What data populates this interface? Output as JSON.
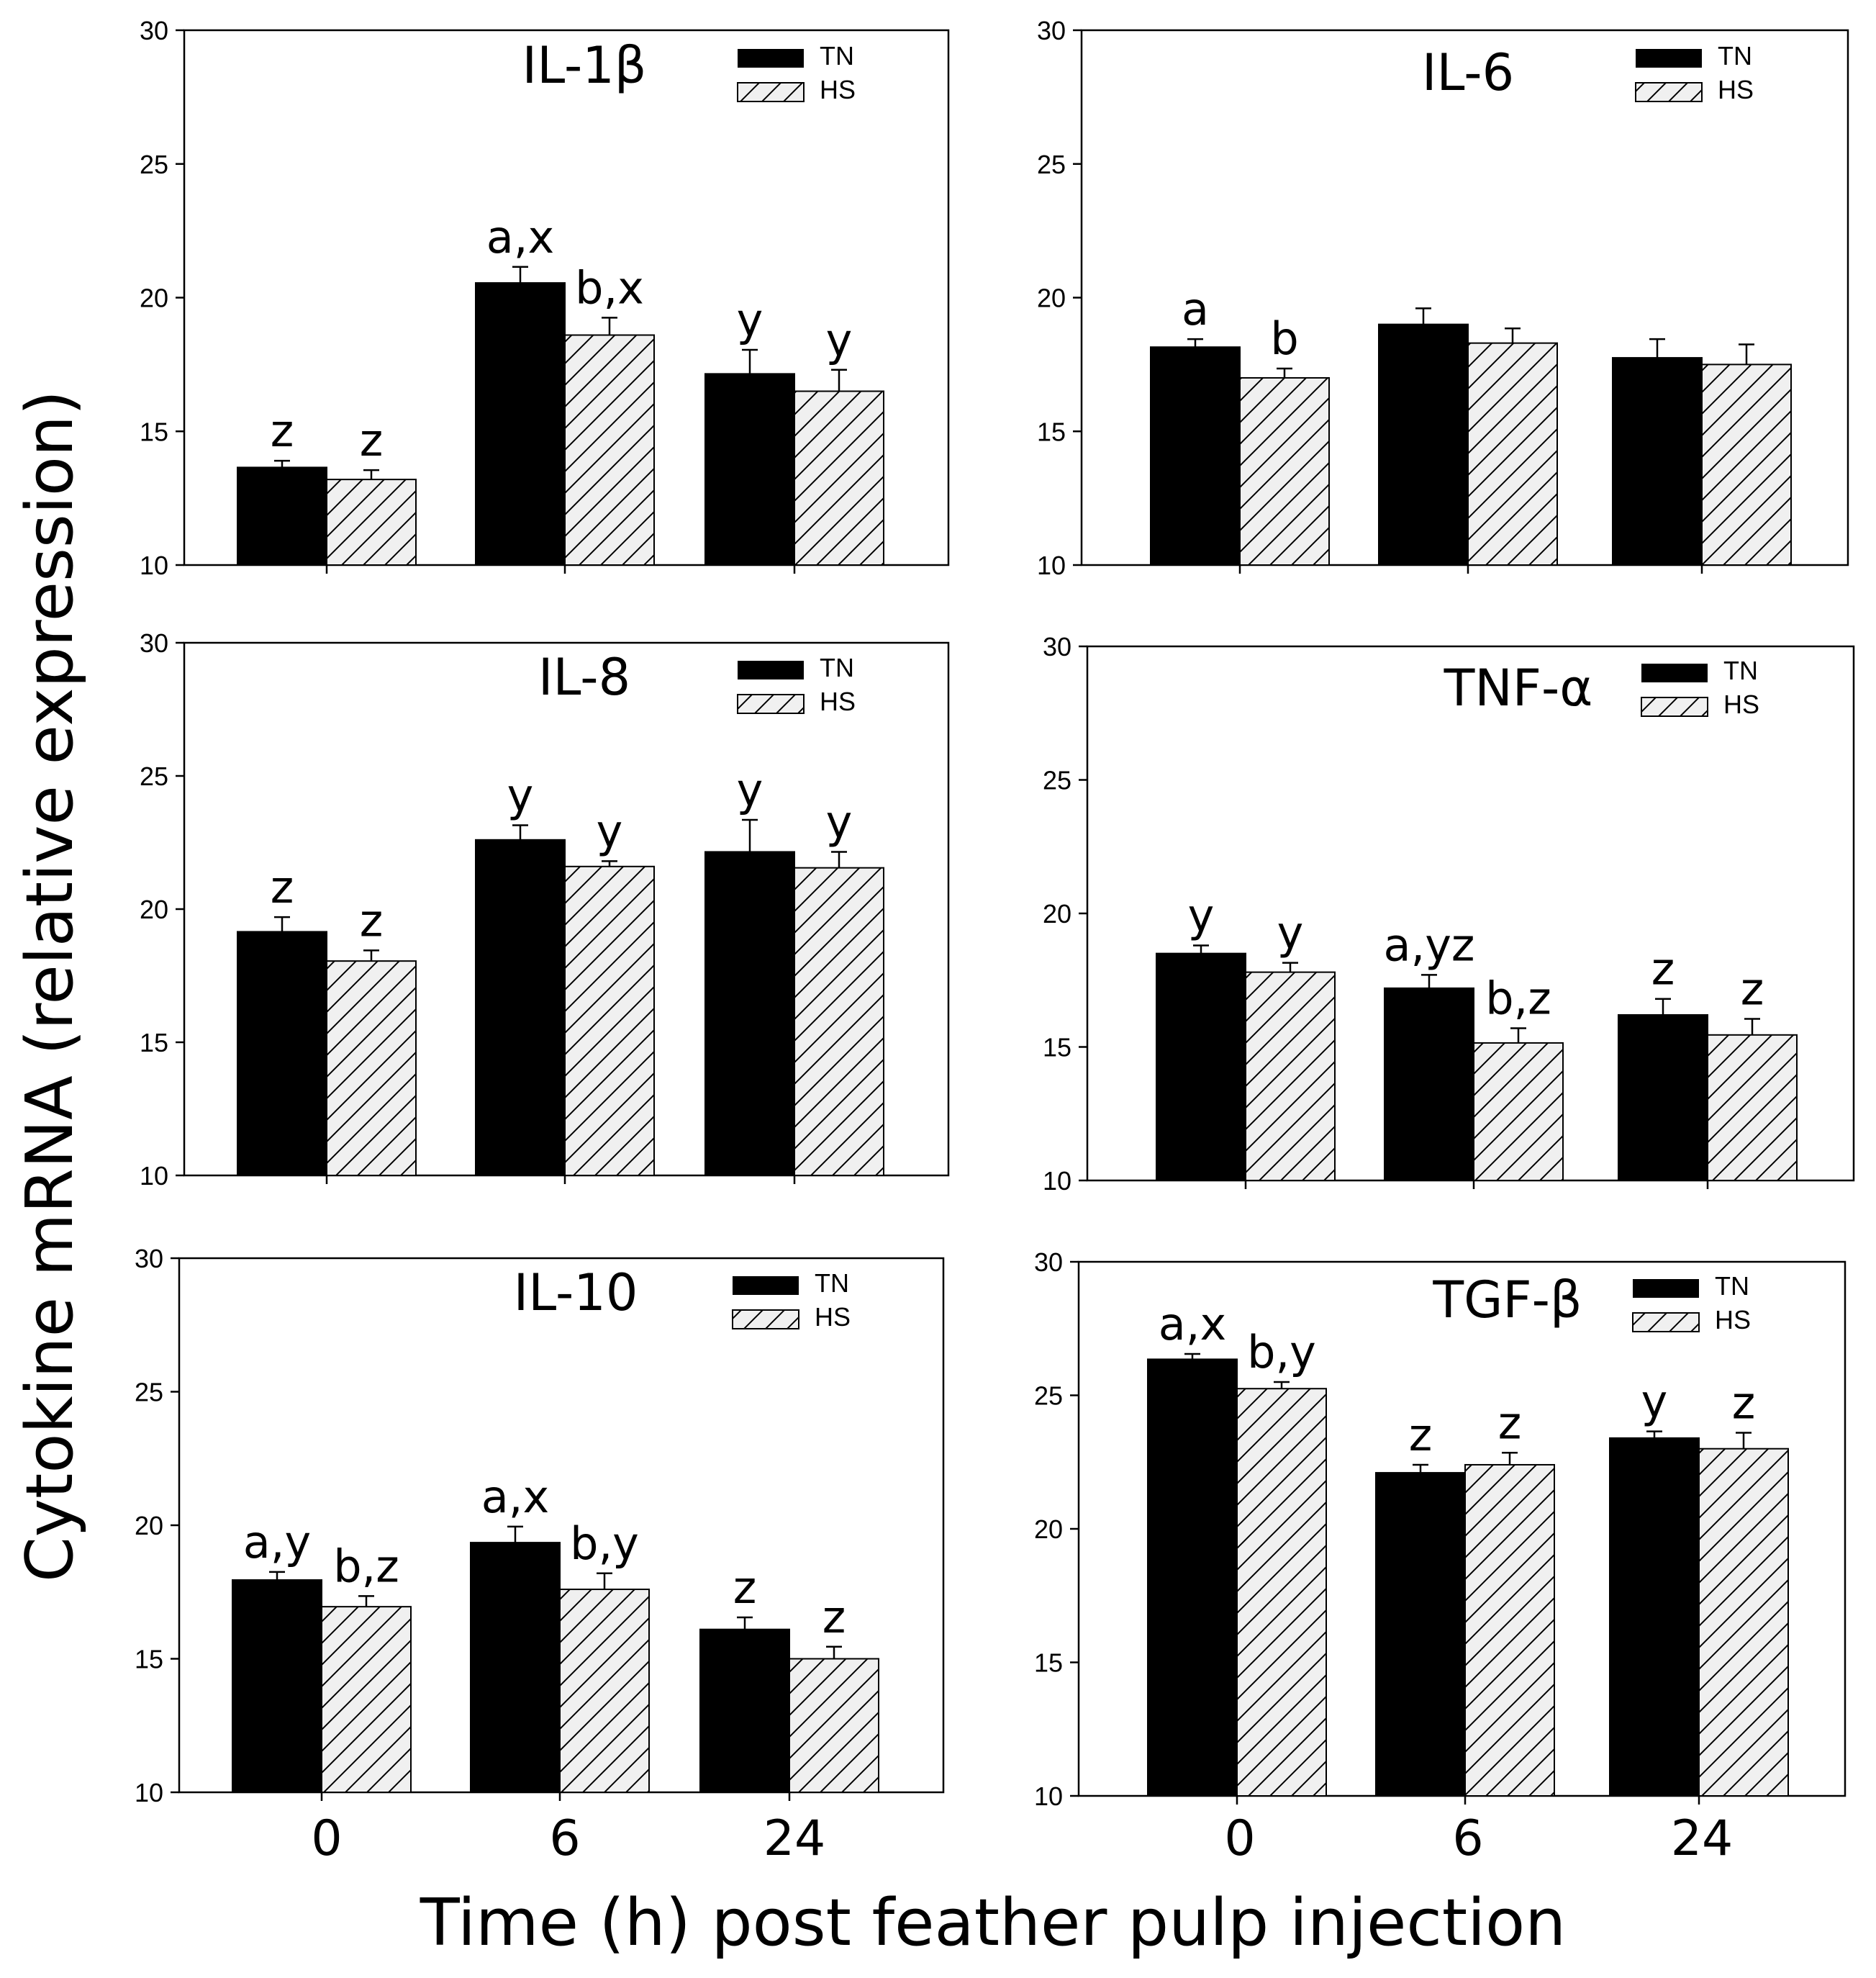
{
  "figure": {
    "ylabel": "Cytokine mRNA (relative expression)",
    "xlabel": "Time (h) post feather pulp injection",
    "categories": [
      "0",
      "6",
      "24"
    ],
    "legend": {
      "tn": "TN",
      "hs": "HS",
      "tn_color": "#000000",
      "hs_fill": "#f0f0f0",
      "hatch_color": "#000000"
    }
  },
  "chart_data": [
    {
      "type": "bar",
      "title": "IL-1β",
      "categories": [
        "0",
        "6",
        "24"
      ],
      "ylim": [
        10,
        30
      ],
      "yticks": [
        10,
        15,
        20,
        25,
        30
      ],
      "series": [
        {
          "name": "TN",
          "values": [
            13.65,
            20.55,
            17.15
          ],
          "errors": [
            0.25,
            0.6,
            0.9
          ],
          "labels": [
            "z",
            "a,x",
            "y"
          ]
        },
        {
          "name": "HS",
          "values": [
            13.2,
            18.6,
            16.5
          ],
          "errors": [
            0.35,
            0.65,
            0.8
          ],
          "labels": [
            "z",
            "b,x",
            "y"
          ]
        }
      ]
    },
    {
      "type": "bar",
      "title": "IL-6",
      "categories": [
        "0",
        "6",
        "24"
      ],
      "ylim": [
        10,
        30
      ],
      "yticks": [
        10,
        15,
        20,
        25,
        30
      ],
      "series": [
        {
          "name": "TN",
          "values": [
            18.15,
            19.0,
            17.75
          ],
          "errors": [
            0.3,
            0.6,
            0.7
          ],
          "labels": [
            "a",
            "",
            ""
          ]
        },
        {
          "name": "HS",
          "values": [
            17.0,
            18.3,
            17.5
          ],
          "errors": [
            0.35,
            0.55,
            0.75
          ],
          "labels": [
            "b",
            "",
            ""
          ]
        }
      ]
    },
    {
      "type": "bar",
      "title": "IL-8",
      "categories": [
        "0",
        "6",
        "24"
      ],
      "ylim": [
        10,
        30
      ],
      "yticks": [
        10,
        15,
        20,
        25,
        30
      ],
      "series": [
        {
          "name": "TN",
          "values": [
            19.15,
            22.6,
            22.15
          ],
          "errors": [
            0.55,
            0.55,
            1.2
          ],
          "labels": [
            "z",
            "y",
            "y"
          ]
        },
        {
          "name": "HS",
          "values": [
            18.05,
            21.6,
            21.55
          ],
          "errors": [
            0.4,
            0.2,
            0.6
          ],
          "labels": [
            "z",
            "y",
            "y"
          ]
        }
      ]
    },
    {
      "type": "bar",
      "title": "TNF-α",
      "categories": [
        "0",
        "6",
        "24"
      ],
      "ylim": [
        10,
        30
      ],
      "yticks": [
        10,
        15,
        20,
        25,
        30
      ],
      "series": [
        {
          "name": "TN",
          "values": [
            18.5,
            17.2,
            16.2
          ],
          "errors": [
            0.3,
            0.5,
            0.6
          ],
          "labels": [
            "y",
            "a,yz",
            "z"
          ]
        },
        {
          "name": "HS",
          "values": [
            17.8,
            15.15,
            15.45
          ],
          "errors": [
            0.35,
            0.55,
            0.6
          ],
          "labels": [
            "y",
            "b,z",
            "z"
          ]
        }
      ]
    },
    {
      "type": "bar",
      "title": "IL-10",
      "categories": [
        "0",
        "6",
        "24"
      ],
      "ylim": [
        10,
        30
      ],
      "yticks": [
        10,
        15,
        20,
        25,
        30
      ],
      "series": [
        {
          "name": "TN",
          "values": [
            17.95,
            19.35,
            16.1
          ],
          "errors": [
            0.3,
            0.6,
            0.45
          ],
          "labels": [
            "a,y",
            "a,x",
            "z"
          ]
        },
        {
          "name": "HS",
          "values": [
            16.95,
            17.6,
            15.0
          ],
          "errors": [
            0.4,
            0.6,
            0.45
          ],
          "labels": [
            "b,z",
            "b,y",
            "z"
          ]
        }
      ]
    },
    {
      "type": "bar",
      "title": "TGF-β",
      "categories": [
        "0",
        "6",
        "24"
      ],
      "ylim": [
        10,
        30
      ],
      "yticks": [
        10,
        15,
        20,
        25,
        30
      ],
      "series": [
        {
          "name": "TN",
          "values": [
            26.35,
            22.1,
            23.4
          ],
          "errors": [
            0.2,
            0.3,
            0.25
          ],
          "labels": [
            "a,x",
            "z",
            "y"
          ]
        },
        {
          "name": "HS",
          "values": [
            25.25,
            22.4,
            23.0
          ],
          "errors": [
            0.25,
            0.45,
            0.6
          ],
          "labels": [
            "b,y",
            "z",
            "z"
          ]
        }
      ]
    }
  ]
}
